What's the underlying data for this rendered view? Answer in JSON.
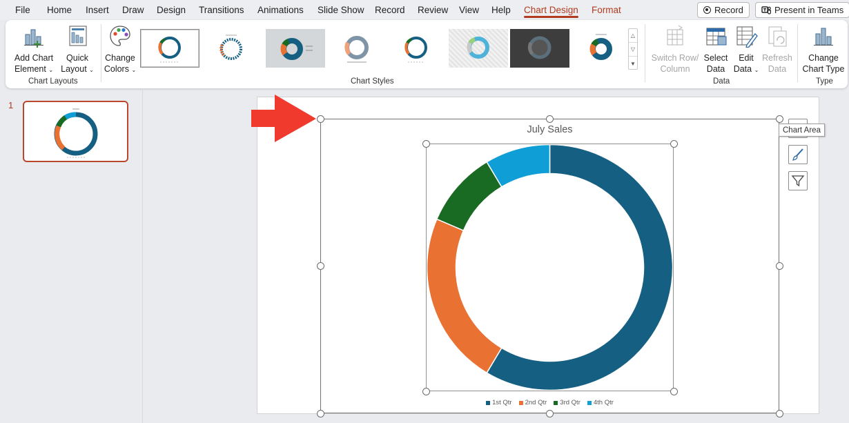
{
  "menu": {
    "tabs": [
      "File",
      "Home",
      "Insert",
      "Draw",
      "Design",
      "Transitions",
      "Animations",
      "Slide Show",
      "Record",
      "Review",
      "View",
      "Help",
      "Chart Design",
      "Format"
    ],
    "active_tab": "Chart Design",
    "record_label": "Record",
    "present_label": "Present in Teams"
  },
  "ribbon": {
    "chart_layouts": {
      "label": "Chart Layouts",
      "add_chart_element": [
        "Add Chart",
        "Element"
      ],
      "quick_layout": [
        "Quick",
        "Layout"
      ]
    },
    "chart_styles": {
      "label": "Chart Styles",
      "change_colors": [
        "Change",
        "Colors"
      ],
      "style_count": 8,
      "selected_index": 0
    },
    "data": {
      "label": "Data",
      "switch_row_column": [
        "Switch Row/",
        "Column"
      ],
      "select_data": [
        "Select",
        "Data"
      ],
      "edit_data": [
        "Edit",
        "Data"
      ],
      "refresh_data": [
        "Refresh",
        "Data"
      ]
    },
    "type": {
      "label": "Type",
      "change_chart_type": [
        "Change",
        "Chart Type"
      ]
    }
  },
  "slides_pane": {
    "slide_number": "1"
  },
  "tooltip": "Chart Area",
  "colors": {
    "accent": "#b23a1e",
    "q1": "#156082",
    "q2": "#e97132",
    "q3": "#196b24",
    "q4": "#0f9ed5"
  },
  "chart_data": {
    "type": "pie",
    "variant": "doughnut",
    "title": "July Sales",
    "categories": [
      "1st Qtr",
      "2nd Qtr",
      "3rd Qtr",
      "4th Qtr"
    ],
    "values": [
      8.2,
      3.2,
      1.4,
      1.2
    ],
    "legend": "bottom"
  }
}
